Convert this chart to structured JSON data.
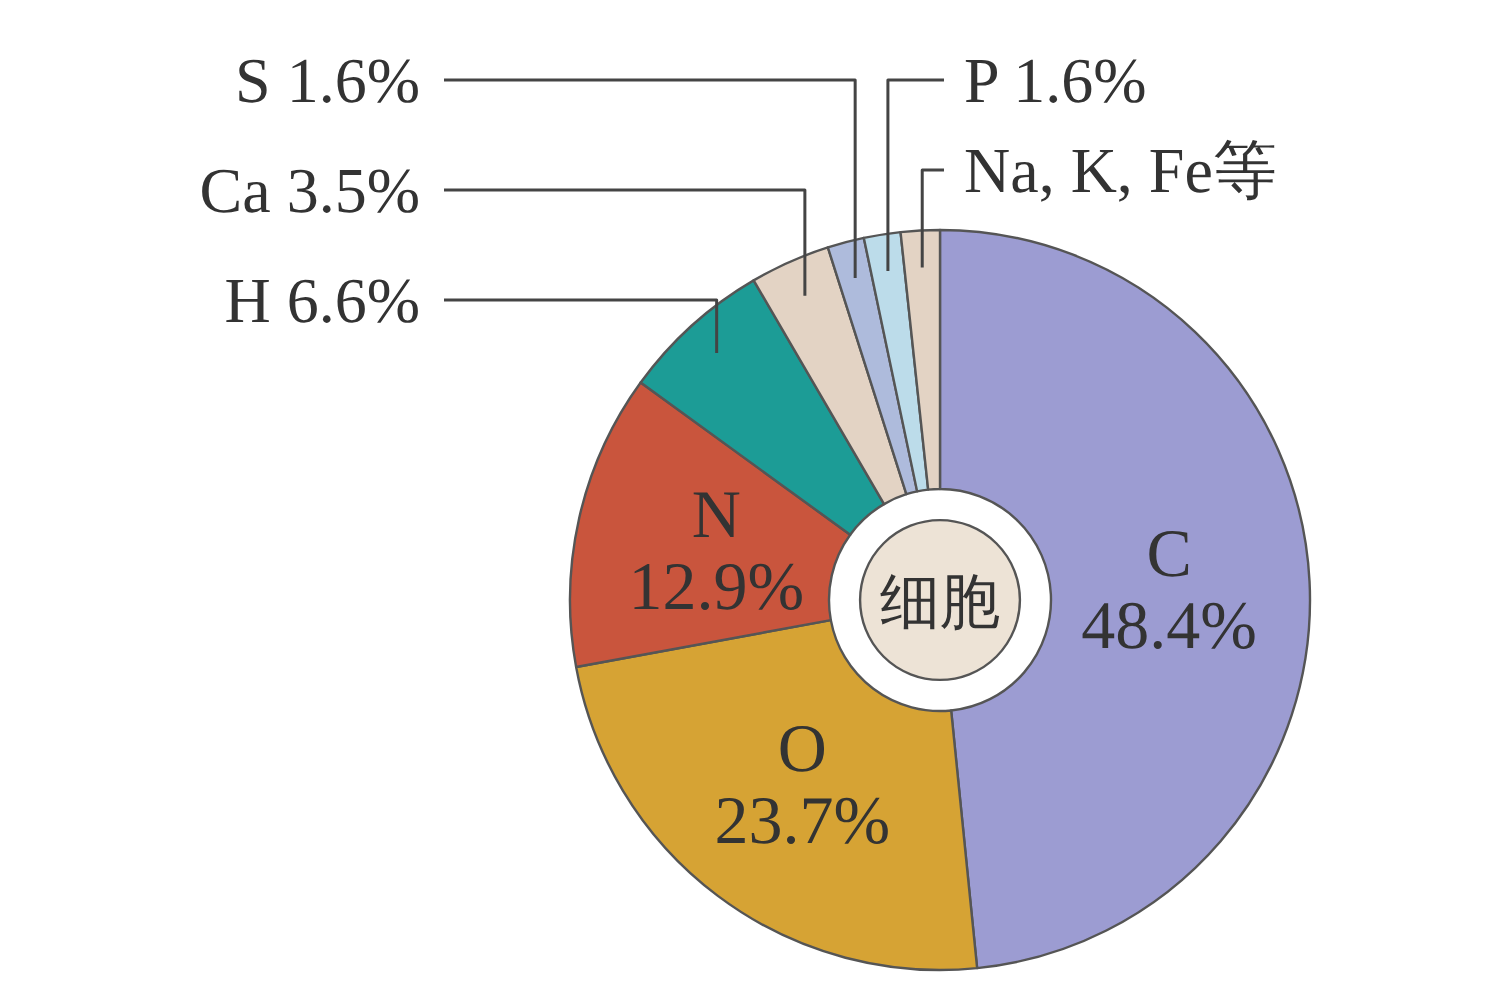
{
  "chart_data": {
    "type": "donut",
    "categories": [
      "C",
      "O",
      "N",
      "H",
      "Ca",
      "S",
      "P",
      "Na, K, Fe等"
    ],
    "values": [
      48.4,
      23.7,
      12.9,
      6.6,
      3.5,
      1.6,
      1.6,
      1.7
    ],
    "colors": [
      "#9c9cd2",
      "#d6a334",
      "#c9553d",
      "#1c9c96",
      "#e3d3c4",
      "#aebbdc",
      "#bcdcea",
      "#e3d3c4"
    ],
    "value_labels": [
      "48.4%",
      "23.7%",
      "12.9%",
      "6.6%",
      "3.5%",
      "1.6%",
      "1.6%",
      null
    ],
    "annotations": [
      "细胞"
    ]
  }
}
